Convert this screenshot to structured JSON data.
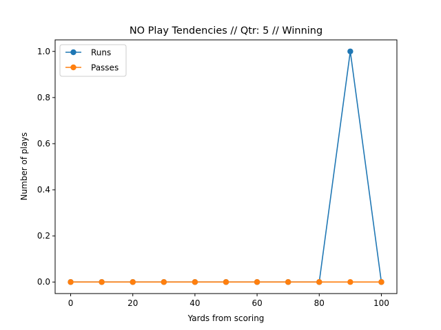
{
  "chart_data": {
    "type": "line",
    "title": "NO Play Tendencies // Qtr: 5 // Winning",
    "xlabel": "Yards from scoring",
    "ylabel": "Number of plays",
    "xlim": [
      -5,
      105
    ],
    "ylim": [
      -0.05,
      1.05
    ],
    "x_ticks": [
      0,
      20,
      40,
      60,
      80,
      100
    ],
    "y_ticks": [
      "0.0",
      "0.2",
      "0.4",
      "0.6",
      "0.8",
      "1.0"
    ],
    "grid": false,
    "legend_position": "top-left",
    "x": [
      0,
      10,
      20,
      30,
      40,
      50,
      60,
      70,
      80,
      90,
      100
    ],
    "series": [
      {
        "name": "Runs",
        "color": "#1f77b4",
        "values": [
          0,
          0,
          0,
          0,
          0,
          0,
          0,
          0,
          0,
          1,
          0
        ]
      },
      {
        "name": "Passes",
        "color": "#ff7f0e",
        "values": [
          0,
          0,
          0,
          0,
          0,
          0,
          0,
          0,
          0,
          0,
          0
        ]
      }
    ]
  }
}
